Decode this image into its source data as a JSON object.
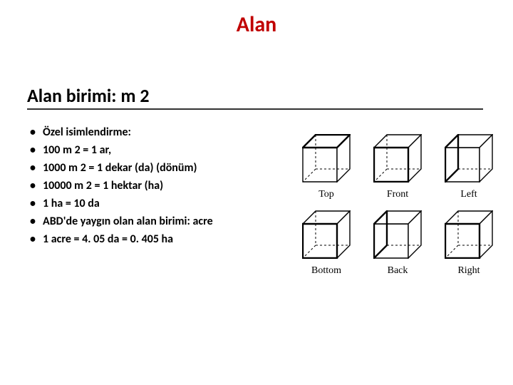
{
  "title": {
    "text": "Alan",
    "fontsize": 30,
    "color": "#c00000"
  },
  "subtitle": {
    "text": "Alan birimi: m 2",
    "fontsize": 26,
    "color": "#000000",
    "underline_width": 640,
    "underline_color": "#333333"
  },
  "bullets": {
    "fontsize": 16,
    "color": "#000000",
    "items": [
      "Özel isimlendirme:",
      "100 m 2 = 1 ar,",
      "1000 m 2 = 1 dekar (da) (dönüm)",
      "10000 m 2 = 1 hektar (ha)",
      "1 ha = 10 da",
      "ABD'de yaygın olan alan birimi: acre",
      "1 acre = 4. 05 da = 0. 405 ha"
    ]
  },
  "cubes": {
    "label_fontsize": 14,
    "label_color": "#000000",
    "cube_size": 48,
    "cube_depth": 18,
    "stroke": "#000000",
    "fill": "#ffffff",
    "items": [
      {
        "label": "Top",
        "highlight": "top"
      },
      {
        "label": "Front",
        "highlight": "front"
      },
      {
        "label": "Left",
        "highlight": "left"
      },
      {
        "label": "Bottom",
        "highlight": "front"
      },
      {
        "label": "Back",
        "highlight": "left"
      },
      {
        "label": "Right",
        "highlight": "front"
      }
    ]
  }
}
